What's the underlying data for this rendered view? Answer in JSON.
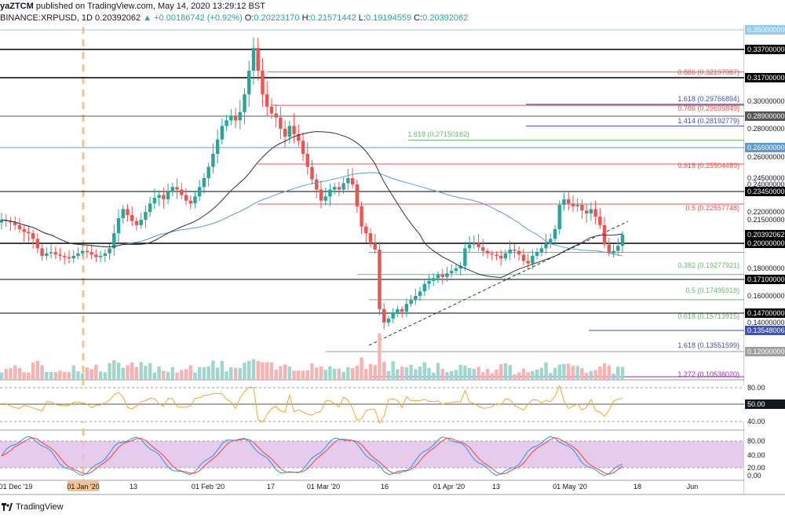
{
  "header": {
    "publisher": "yaZTCM",
    "published_text": "published on TradingView.com, May 14, 2020 13:29:12 BST",
    "symbol": "BINANCE:XRPUSD, 1D",
    "last": "0.20392062",
    "change": "▲ +0.00186742 (+0.92%)",
    "o_label": "O:",
    "o": "0.20223170",
    "h_label": "H:",
    "h": "0.21571442",
    "l_label": "L:",
    "l": "0.19194559",
    "c_label": "C:",
    "c": "0.20392062"
  },
  "footer": {
    "brand": "TradingView"
  },
  "colors": {
    "up": "#26a69a",
    "down": "#ef5350",
    "ma200": "#5b9bd5",
    "ma100": "#333333",
    "rsi": "#f5a623",
    "stoch_k": "#2196f3",
    "stoch_d": "#f44336",
    "stoch_band": "#e1bee7"
  },
  "chart_data": {
    "type": "candlestick",
    "y_ticks": [
      "0.35000000",
      "0.33700000",
      "0.31700000",
      "0.30000000",
      "0.28900000",
      "0.28000000",
      "0.26600000",
      "0.26000000",
      "0.24500000",
      "0.24000000",
      "0.23450000",
      "0.22000000",
      "0.21500000",
      "0.20392062",
      "0.20000000",
      "0.18000000",
      "0.17100000",
      "0.16000000",
      "0.14700000",
      "0.14000000",
      "0.13548006",
      "0.12000000"
    ],
    "x_ticks": [
      "01 Dec '19",
      "01 Jan '20",
      "13",
      "01 Feb '20",
      "17",
      "01 Mar '20",
      "16",
      "01 Apr '20",
      "13",
      "01 May '20",
      "18",
      "Jun"
    ],
    "fib_levels": [
      {
        "label": "0.886 (0.32197087)",
        "color": "#ef5350"
      },
      {
        "label": "1.618 (0.29766894)",
        "color": "#3f51b5"
      },
      {
        "label": "0.786 (0.29699849)",
        "color": "#ef5350"
      },
      {
        "label": "1.414 (0.28192779)",
        "color": "#3f51b5"
      },
      {
        "label": "1.618 (0.27150162)",
        "color": "#66bb6a"
      },
      {
        "label": "0.618 (0.25504489)",
        "color": "#ef5350"
      },
      {
        "label": "0.5 (0.22557748)",
        "color": "#ef5350"
      },
      {
        "label": "0.382 (0.19277921)",
        "color": "#66bb6a"
      },
      {
        "label": "0.5 (0.17495918)",
        "color": "#66bb6a"
      },
      {
        "label": "0.618 (0.15713915)",
        "color": "#66bb6a"
      },
      {
        "label": "1.618 (0.13551599)",
        "color": "#3f51b5"
      },
      {
        "label": "1.272 (0.10536020)",
        "color": "#9c27b0"
      }
    ],
    "rsi_ticks": [
      "80.00",
      "50.00",
      "40.00"
    ],
    "stoch_ticks": [
      "80.00",
      "40.00",
      "20.00",
      "0.00"
    ],
    "price_series": [
      0.215,
      0.214,
      0.213,
      0.211,
      0.208,
      0.206,
      0.205,
      0.202,
      0.196,
      0.19,
      0.192,
      0.193,
      0.191,
      0.19,
      0.189,
      0.188,
      0.19,
      0.192,
      0.194,
      0.193,
      0.191,
      0.189,
      0.19,
      0.192,
      0.196,
      0.205,
      0.216,
      0.222,
      0.218,
      0.214,
      0.211,
      0.215,
      0.22,
      0.226,
      0.23,
      0.232,
      0.229,
      0.234,
      0.238,
      0.236,
      0.232,
      0.228,
      0.226,
      0.231,
      0.238,
      0.245,
      0.253,
      0.262,
      0.272,
      0.282,
      0.286,
      0.289,
      0.286,
      0.292,
      0.305,
      0.322,
      0.338,
      0.322,
      0.305,
      0.296,
      0.291,
      0.288,
      0.28,
      0.274,
      0.282,
      0.276,
      0.271,
      0.262,
      0.253,
      0.244,
      0.236,
      0.228,
      0.231,
      0.236,
      0.238,
      0.236,
      0.241,
      0.245,
      0.24,
      0.224,
      0.21,
      0.205,
      0.2,
      0.195,
      0.15,
      0.14,
      0.143,
      0.147,
      0.15,
      0.148,
      0.154,
      0.157,
      0.16,
      0.163,
      0.168,
      0.17,
      0.172,
      0.175,
      0.173,
      0.176,
      0.178,
      0.18,
      0.182,
      0.196,
      0.199,
      0.2,
      0.197,
      0.194,
      0.192,
      0.191,
      0.19,
      0.188,
      0.192,
      0.195,
      0.194,
      0.191,
      0.186,
      0.184,
      0.19,
      0.193,
      0.196,
      0.2,
      0.202,
      0.208,
      0.225,
      0.229,
      0.226,
      0.224,
      0.225,
      0.221,
      0.219,
      0.222,
      0.217,
      0.211,
      0.199,
      0.192,
      0.194,
      0.198,
      0.2039
    ]
  }
}
